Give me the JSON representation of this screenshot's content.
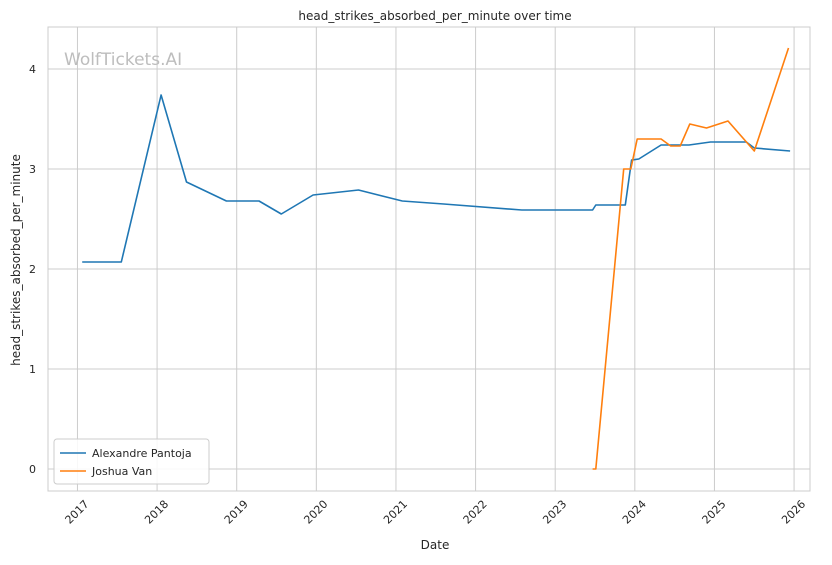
{
  "chart_data": {
    "type": "line",
    "title": "head_strikes_absorbed_per_minute over time",
    "xlabel": "Date",
    "ylabel": "head_strikes_absorbed_per_minute",
    "watermark": "WolfTickets.AI",
    "xlim": [
      2016.63,
      2026.2
    ],
    "ylim": [
      -0.22,
      4.42
    ],
    "x_ticks": [
      2017,
      2018,
      2019,
      2020,
      2021,
      2022,
      2023,
      2024,
      2025,
      2026
    ],
    "x_tick_labels": [
      "2017",
      "2018",
      "2019",
      "2020",
      "2021",
      "2022",
      "2023",
      "2024",
      "2025",
      "2026"
    ],
    "y_ticks": [
      0,
      1,
      2,
      3,
      4
    ],
    "y_tick_labels": [
      "0",
      "1",
      "2",
      "3",
      "4"
    ],
    "grid": true,
    "legend_position": "lower-left",
    "series": [
      {
        "name": "Alexandre Pantoja",
        "color": "#1f77b4",
        "points": [
          [
            2017.06,
            2.07
          ],
          [
            2017.55,
            2.07
          ],
          [
            2018.05,
            3.74
          ],
          [
            2018.37,
            2.87
          ],
          [
            2018.87,
            2.68
          ],
          [
            2019.28,
            2.68
          ],
          [
            2019.56,
            2.55
          ],
          [
            2019.96,
            2.74
          ],
          [
            2020.53,
            2.79
          ],
          [
            2021.08,
            2.68
          ],
          [
            2021.6,
            2.65
          ],
          [
            2022.58,
            2.59
          ],
          [
            2023.47,
            2.59
          ],
          [
            2023.51,
            2.64
          ],
          [
            2023.88,
            2.64
          ],
          [
            2023.96,
            3.09
          ],
          [
            2024.05,
            3.1
          ],
          [
            2024.33,
            3.24
          ],
          [
            2024.68,
            3.24
          ],
          [
            2024.95,
            3.27
          ],
          [
            2025.4,
            3.27
          ],
          [
            2025.5,
            3.21
          ],
          [
            2025.95,
            3.18
          ]
        ]
      },
      {
        "name": "Joshua Van",
        "color": "#ff7f0e",
        "points": [
          [
            2023.47,
            0.0
          ],
          [
            2023.51,
            0.0
          ],
          [
            2023.86,
            3.0
          ],
          [
            2023.95,
            3.0
          ],
          [
            2024.03,
            3.3
          ],
          [
            2024.33,
            3.3
          ],
          [
            2024.45,
            3.23
          ],
          [
            2024.57,
            3.23
          ],
          [
            2024.69,
            3.45
          ],
          [
            2024.9,
            3.41
          ],
          [
            2025.17,
            3.48
          ],
          [
            2025.5,
            3.18
          ],
          [
            2025.93,
            4.21
          ]
        ]
      }
    ]
  }
}
